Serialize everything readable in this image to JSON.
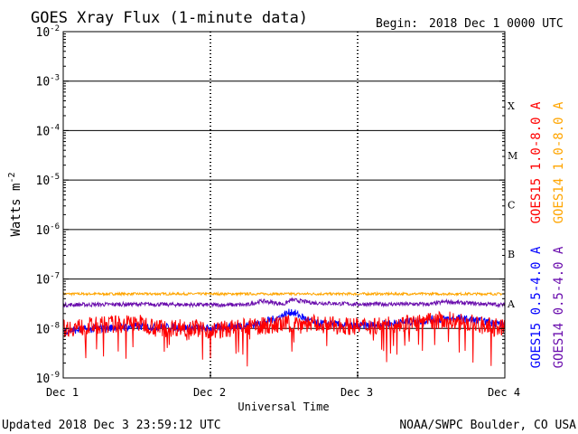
{
  "chart_data": {
    "type": "line",
    "title": "GOES Xray Flux (1-minute data)",
    "begin_label": "Begin:",
    "begin_value": "2018 Dec 1 0000 UTC",
    "xlabel": "Universal Time",
    "ylabel": "Watts m",
    "ylabel_superscript": "-2",
    "yscale": "log",
    "ylim": [
      1e-09,
      0.01
    ],
    "y_ticks": [
      {
        "base": "10",
        "exp": "-9",
        "value": 1e-09
      },
      {
        "base": "10",
        "exp": "-8",
        "value": 1e-08
      },
      {
        "base": "10",
        "exp": "-7",
        "value": 1e-07
      },
      {
        "base": "10",
        "exp": "-6",
        "value": 1e-06
      },
      {
        "base": "10",
        "exp": "-5",
        "value": 1e-05
      },
      {
        "base": "10",
        "exp": "-4",
        "value": 0.0001
      },
      {
        "base": "10",
        "exp": "-3",
        "value": 0.001
      },
      {
        "base": "10",
        "exp": "-2",
        "value": 0.01
      }
    ],
    "x_ticks": [
      {
        "label": "Dec 1",
        "day": 0
      },
      {
        "label": "Dec 2",
        "day": 1
      },
      {
        "label": "Dec 3",
        "day": 2
      },
      {
        "label": "Dec 4",
        "day": 3
      }
    ],
    "xlim_days": [
      0,
      3
    ],
    "flare_classes": [
      {
        "label": "X",
        "value": 0.0001
      },
      {
        "label": "M",
        "value": 1e-05
      },
      {
        "label": "C",
        "value": 1e-06
      },
      {
        "label": "B",
        "value": 1e-07
      },
      {
        "label": "A",
        "value": 1e-08
      }
    ],
    "grid": "horizontal lines at each decade",
    "series": [
      {
        "name": "GOES15 1.0-8.0 A",
        "color": "#ff0000",
        "points": [
          [
            0.0,
            1e-08
          ],
          [
            0.15,
            1.1e-08
          ],
          [
            0.3,
            1.2e-08
          ],
          [
            0.5,
            1.3e-08
          ],
          [
            0.7,
            1e-08
          ],
          [
            0.85,
            1.1e-08
          ],
          [
            1.0,
            9e-09
          ],
          [
            1.15,
            1e-08
          ],
          [
            1.3,
            1.1e-08
          ],
          [
            1.5,
            1.2e-08
          ],
          [
            1.6,
            1.3e-08
          ],
          [
            1.75,
            1.2e-08
          ],
          [
            2.0,
            1.1e-08
          ],
          [
            2.2,
            1.2e-08
          ],
          [
            2.4,
            1.3e-08
          ],
          [
            2.5,
            1.4e-08
          ],
          [
            2.6,
            1.5e-08
          ],
          [
            2.75,
            1.3e-08
          ],
          [
            2.9,
            1.1e-08
          ],
          [
            3.0,
            1e-08
          ]
        ]
      },
      {
        "name": "GOES14 1.0-8.0 A",
        "color": "#ffa500",
        "points": [
          [
            0.0,
            5e-08
          ],
          [
            0.5,
            5e-08
          ],
          [
            1.0,
            5e-08
          ],
          [
            1.5,
            5e-08
          ],
          [
            2.0,
            5e-08
          ],
          [
            2.5,
            5e-08
          ],
          [
            3.0,
            5e-08
          ]
        ]
      },
      {
        "name": "GOES15 0.5-4.0 A",
        "color": "#0000ff",
        "points": [
          [
            0.0,
            9e-09
          ],
          [
            0.5,
            1.1e-08
          ],
          [
            1.0,
            1e-08
          ],
          [
            1.3,
            1.2e-08
          ],
          [
            1.45,
            1.6e-08
          ],
          [
            1.55,
            2.2e-08
          ],
          [
            1.7,
            1.3e-08
          ],
          [
            2.0,
            1.1e-08
          ],
          [
            2.5,
            1.5e-08
          ],
          [
            2.7,
            1.6e-08
          ],
          [
            3.0,
            1.2e-08
          ]
        ]
      },
      {
        "name": "GOES14 0.5-4.0 A",
        "color": "#6a0dad",
        "points": [
          [
            0.0,
            3e-08
          ],
          [
            0.5,
            3.1e-08
          ],
          [
            1.0,
            3e-08
          ],
          [
            1.25,
            3e-08
          ],
          [
            1.35,
            3.6e-08
          ],
          [
            1.5,
            3.1e-08
          ],
          [
            1.55,
            3.8e-08
          ],
          [
            1.7,
            3.3e-08
          ],
          [
            2.0,
            3.1e-08
          ],
          [
            2.5,
            3.1e-08
          ],
          [
            2.6,
            3.5e-08
          ],
          [
            2.7,
            3.3e-08
          ],
          [
            3.0,
            3e-08
          ]
        ]
      }
    ]
  },
  "footer": {
    "updated": "Updated 2018 Dec  3 23:59:12 UTC",
    "credit": "NOAA/SWPC Boulder, CO USA"
  }
}
